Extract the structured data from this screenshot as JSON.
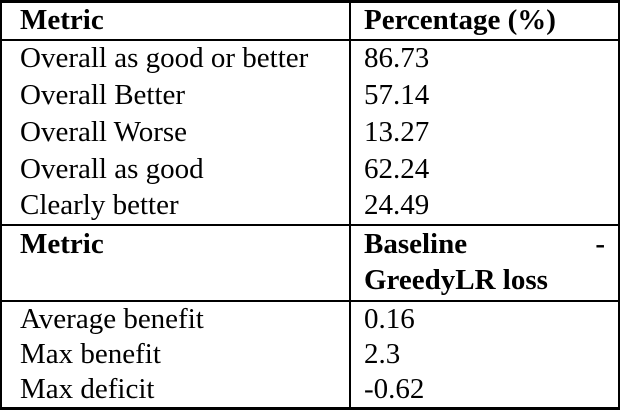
{
  "page": {
    "background": "#ffffff"
  },
  "table": {
    "border_color": "#000000",
    "text_color": "#000000",
    "section1": {
      "header": {
        "metric_label": "Metric",
        "value_label": "Percentage (%)"
      },
      "rows": [
        {
          "metric": "Overall as good or better",
          "value": "86.73"
        },
        {
          "metric": "Overall Better",
          "value": "57.14"
        },
        {
          "metric": "Overall Worse",
          "value": "13.27"
        },
        {
          "metric": "Overall as good",
          "value": "62.24"
        },
        {
          "metric": "Clearly better",
          "value": "24.49"
        }
      ]
    },
    "section2": {
      "header": {
        "metric_label": "Metric",
        "value_label_line1_left": "Baseline",
        "value_label_line1_right": "-",
        "value_label_line2": "GreedyLR loss"
      },
      "rows": [
        {
          "metric": "Average benefit",
          "value": "0.16"
        },
        {
          "metric": "Max benefit",
          "value": "2.3"
        },
        {
          "metric": "Max deficit",
          "value": "-0.62"
        }
      ]
    }
  }
}
